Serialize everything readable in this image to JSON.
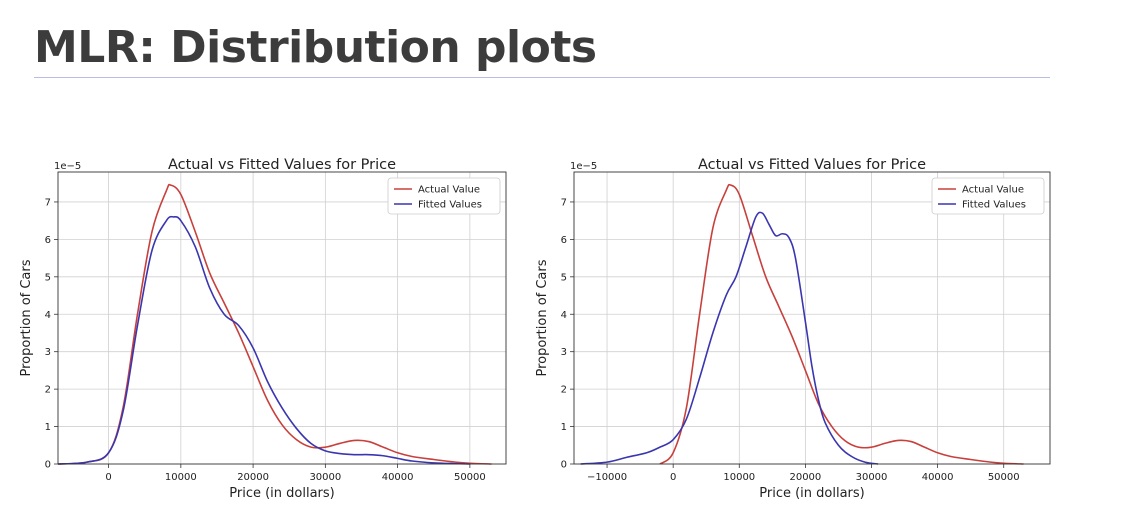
{
  "slide": {
    "title": "MLR: Distribution plots"
  },
  "colors": {
    "actual": "#c8403c",
    "fitted": "#3a36b0"
  },
  "chart_data": [
    {
      "type": "line",
      "title": "Actual vs Fitted Values for Price",
      "xlabel": "Price (in dollars)",
      "ylabel": "Proportion of Cars",
      "y_multiplier": "1e−5",
      "xlim": [
        -7000,
        55000
      ],
      "ylim": [
        0,
        7.8
      ],
      "xticks": [
        0,
        10000,
        20000,
        30000,
        40000,
        50000
      ],
      "yticks": [
        0,
        1,
        2,
        3,
        4,
        5,
        6,
        7
      ],
      "grid": true,
      "legend": "top-right",
      "series": [
        {
          "name": "Actual Value",
          "color": "#c8403c",
          "x": [
            -7000,
            -3000,
            0,
            2000,
            4000,
            6000,
            8000,
            8600,
            10000,
            12000,
            14000,
            16000,
            18000,
            20000,
            22000,
            24000,
            26000,
            28000,
            30000,
            32000,
            34000,
            36000,
            38000,
            40000,
            42000,
            45000,
            48000,
            50000,
            53000
          ],
          "y": [
            0,
            0.05,
            0.3,
            1.5,
            4.0,
            6.2,
            7.3,
            7.45,
            7.2,
            6.2,
            5.1,
            4.3,
            3.5,
            2.6,
            1.7,
            1.05,
            0.65,
            0.45,
            0.45,
            0.55,
            0.63,
            0.6,
            0.45,
            0.3,
            0.2,
            0.12,
            0.05,
            0.02,
            0
          ]
        },
        {
          "name": "Fitted Values",
          "color": "#3a36b0",
          "x": [
            -7000,
            -3000,
            0,
            2000,
            4000,
            6000,
            8000,
            9000,
            10000,
            12000,
            14000,
            16000,
            18000,
            20000,
            22000,
            24000,
            26000,
            28000,
            30000,
            32000,
            34000,
            36000,
            38000,
            40000,
            42000,
            45000,
            48000,
            50000
          ],
          "y": [
            0,
            0.05,
            0.3,
            1.4,
            3.7,
            5.7,
            6.5,
            6.6,
            6.5,
            5.8,
            4.7,
            4.0,
            3.7,
            3.1,
            2.2,
            1.5,
            0.95,
            0.55,
            0.35,
            0.28,
            0.25,
            0.25,
            0.22,
            0.15,
            0.08,
            0.03,
            0.01,
            0
          ]
        }
      ]
    },
    {
      "type": "line",
      "title": "Actual vs Fitted Values for Price",
      "xlabel": "Price (in dollars)",
      "ylabel": "Proportion of Cars",
      "y_multiplier": "1e−5",
      "xlim": [
        -15000,
        57000
      ],
      "ylim": [
        0,
        7.8
      ],
      "xticks": [
        -10000,
        0,
        10000,
        20000,
        30000,
        40000,
        50000
      ],
      "yticks": [
        0,
        1,
        2,
        3,
        4,
        5,
        6,
        7
      ],
      "grid": true,
      "legend": "top-right",
      "series": [
        {
          "name": "Actual Value",
          "color": "#c8403c",
          "x": [
            -2000,
            0,
            2000,
            4000,
            6000,
            8000,
            8700,
            10000,
            12000,
            14000,
            16000,
            18000,
            20000,
            22000,
            24000,
            26000,
            28000,
            30000,
            32000,
            34000,
            36000,
            38000,
            40000,
            42000,
            45000,
            48000,
            50000,
            53000
          ],
          "y": [
            0,
            0.3,
            1.5,
            4.0,
            6.3,
            7.3,
            7.45,
            7.2,
            6.1,
            5.0,
            4.2,
            3.4,
            2.5,
            1.6,
            1.0,
            0.62,
            0.45,
            0.45,
            0.55,
            0.63,
            0.6,
            0.45,
            0.3,
            0.2,
            0.12,
            0.05,
            0.02,
            0
          ]
        },
        {
          "name": "Fitted Values",
          "color": "#3a36b0",
          "x": [
            -14000,
            -10000,
            -7000,
            -4000,
            -2000,
            0,
            2000,
            4000,
            6000,
            8000,
            9500,
            11000,
            12500,
            13500,
            14500,
            15500,
            16500,
            17500,
            18500,
            20000,
            21000,
            22000,
            23000,
            25000,
            27000,
            29000,
            31000
          ],
          "y": [
            0,
            0.05,
            0.18,
            0.3,
            0.45,
            0.65,
            1.2,
            2.3,
            3.5,
            4.5,
            5.0,
            5.8,
            6.6,
            6.7,
            6.4,
            6.1,
            6.15,
            6.05,
            5.5,
            3.8,
            2.6,
            1.7,
            1.1,
            0.5,
            0.2,
            0.05,
            0
          ]
        }
      ]
    }
  ]
}
